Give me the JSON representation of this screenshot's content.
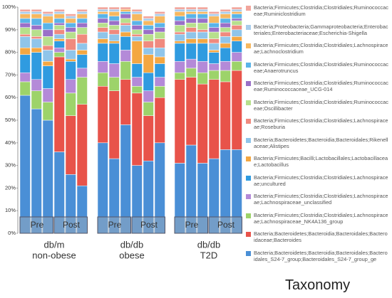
{
  "chart_data": {
    "type": "stacked_bar",
    "ylim": [
      0,
      100
    ],
    "yticks": [
      {
        "value": 0,
        "label": "0%"
      },
      {
        "value": 10,
        "label": "10%"
      },
      {
        "value": 20,
        "label": "20%"
      },
      {
        "value": 30,
        "label": "30%"
      },
      {
        "value": 40,
        "label": "40%"
      },
      {
        "value": 50,
        "label": "50%"
      },
      {
        "value": 60,
        "label": "60%"
      },
      {
        "value": 70,
        "label": "70%"
      },
      {
        "value": 80,
        "label": "80%"
      },
      {
        "value": 90,
        "label": "90%"
      },
      {
        "value": 100,
        "label": "100%"
      }
    ],
    "groups": [
      {
        "label": [
          "db/m",
          "non-obese"
        ]
      },
      {
        "label": [
          "db/db",
          "obese"
        ]
      },
      {
        "label": [
          "db/db",
          "T2D"
        ]
      }
    ],
    "period_labels": [
      "Pre",
      "Post"
    ],
    "legend_title": "Taxonomy",
    "series": [
      {
        "name": "Bacteria;Bacteroidetes;Bacteroidia;Bacteroidales;Bacteroidales_S24-7_group;Bacteroidales_S24-7_group_ge",
        "color": "#4a8fd6",
        "values": [
          61,
          55,
          50,
          36,
          26,
          21,
          40,
          33,
          48,
          30,
          32,
          40,
          31,
          39,
          31,
          33,
          37,
          37
        ]
      },
      {
        "name": "Bacteria;Bacteroidetes;Bacteroidia;Bacteroidales;Bacteroidaceae;Bacteroides",
        "color": "#e8534a",
        "values": [
          0,
          0,
          0,
          42,
          26,
          36,
          25,
          30,
          20,
          32,
          20,
          20,
          37,
          30,
          35,
          35,
          30,
          35
        ]
      },
      {
        "name": "Bacteria;Firmicutes;Clostridia;Clostridiales;Lachnospiraceae;Lachnospiraceae_NK4A136_group",
        "color": "#9dd36a",
        "values": [
          6,
          8,
          8,
          2,
          10,
          12,
          6,
          6,
          8,
          3,
          6,
          5,
          3,
          4,
          5,
          4,
          5,
          4
        ]
      },
      {
        "name": "Bacteria;Firmicutes;Clostridia;Clostridiales;Lachnospiraceae;Lachnospiraceae_unclassified",
        "color": "#b48ad8",
        "values": [
          4,
          5,
          6,
          2,
          6,
          4,
          5,
          6,
          5,
          4,
          5,
          4,
          5,
          4,
          5,
          3,
          4,
          4
        ]
      },
      {
        "name": "Bacteria;Firmicutes;Clostridia;Clostridiales;Lachnospiraceae;uncultured",
        "color": "#2f9be0",
        "values": [
          8,
          12,
          10,
          3,
          8,
          6,
          8,
          9,
          6,
          6,
          8,
          6,
          8,
          7,
          8,
          5,
          6,
          5
        ]
      },
      {
        "name": "Bacteria;Firmicutes;Bacilli;Lactobacillales;Lactobacillaceae;Lactobacillus",
        "color": "#f4a742",
        "values": [
          3,
          2,
          2,
          1,
          1,
          2,
          2,
          1,
          2,
          10,
          8,
          3,
          1,
          2,
          2,
          1,
          2,
          2
        ]
      },
      {
        "name": "Bacteria;Bacteroidetes;Bacteroidia;Bacteroidales;Rikenellaceae;Alistipes",
        "color": "#8fc5ea",
        "values": [
          5,
          4,
          5,
          2,
          4,
          3,
          3,
          3,
          3,
          2,
          3,
          4,
          3,
          3,
          3,
          3,
          3,
          3
        ]
      },
      {
        "name": "Bacteria;Firmicutes;Clostridia;Clostridiales;Lachnospiraceae;Roseburia",
        "color": "#f08a7e",
        "values": [
          1,
          1,
          2,
          2,
          5,
          4,
          2,
          2,
          1,
          1,
          3,
          4,
          1,
          2,
          1,
          2,
          2,
          2
        ]
      },
      {
        "name": "Bacteria;Firmicutes;Clostridia;Clostridiales;Ruminococcaceae;Oscillibacter",
        "color": "#b7e08c",
        "values": [
          3,
          3,
          4,
          2,
          3,
          3,
          2,
          2,
          2,
          2,
          3,
          3,
          3,
          2,
          3,
          3,
          2,
          2
        ]
      },
      {
        "name": "Bacteria;Firmicutes;Clostridia;Clostridiales;Ruminococcaceae;Ruminococcaceae_UCG-014",
        "color": "#9a70c8",
        "values": [
          2,
          2,
          3,
          1,
          2,
          2,
          2,
          2,
          2,
          2,
          2,
          2,
          2,
          2,
          2,
          2,
          2,
          1
        ]
      },
      {
        "name": "Bacteria;Firmicutes;Clostridia;Clostridiales;Ruminococcaceae;Anaerotruncus",
        "color": "#5ab4e8",
        "values": [
          2,
          3,
          3,
          2,
          2,
          2,
          2,
          2,
          1,
          2,
          2,
          2,
          2,
          2,
          2,
          2,
          2,
          2
        ]
      },
      {
        "name": "Bacteria;Firmicutes;Clostridia;Clostridiales;Lachnospiraceae;Lachnoclostridium",
        "color": "#f6b860",
        "values": [
          2,
          2,
          3,
          2,
          2,
          2,
          1,
          2,
          1,
          3,
          2,
          3,
          2,
          1,
          1,
          3,
          2,
          1
        ]
      },
      {
        "name": "Bacteria;Proteobacteria;Gammaproteobacteria;Enterobacteriales;Enterobacteriaceae;Escherichia-Shigella",
        "color": "#a8cdec",
        "values": [
          1,
          1,
          1,
          1,
          1,
          1,
          1,
          1,
          0,
          1,
          1,
          1,
          1,
          1,
          1,
          1,
          1,
          1
        ]
      },
      {
        "name": "Bacteria;Firmicutes;Clostridia;Clostridiales;Ruminococcaceae;Ruminiclostridium",
        "color": "#f2a59c",
        "values": [
          1,
          1,
          1,
          1,
          1,
          1,
          1,
          1,
          1,
          1,
          1,
          1,
          1,
          1,
          1,
          1,
          1,
          1
        ]
      }
    ]
  }
}
